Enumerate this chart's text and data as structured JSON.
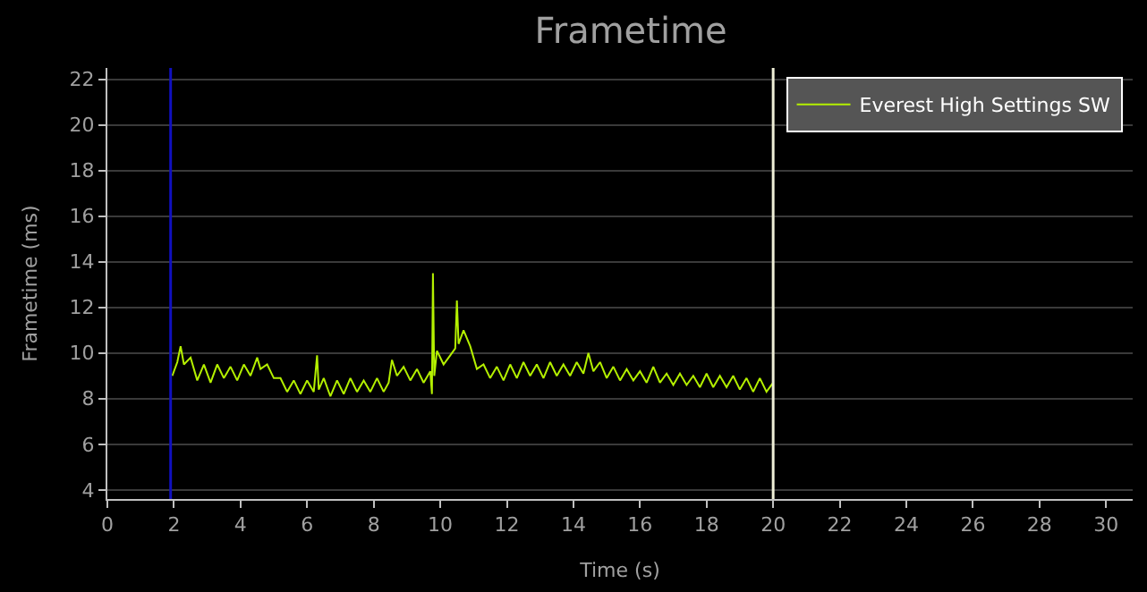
{
  "chart_data": {
    "type": "line",
    "title": "Frametime",
    "xlabel": "Time (s)",
    "ylabel": "Frametime (ms)",
    "x": [
      1.95,
      2.1,
      2.2,
      2.3,
      2.5,
      2.7,
      2.9,
      3.1,
      3.3,
      3.5,
      3.7,
      3.9,
      4.1,
      4.3,
      4.5,
      4.6,
      4.8,
      5.0,
      5.2,
      5.4,
      5.6,
      5.8,
      6.0,
      6.2,
      6.3,
      6.35,
      6.5,
      6.7,
      6.9,
      7.1,
      7.3,
      7.5,
      7.7,
      7.9,
      8.1,
      8.3,
      8.45,
      8.55,
      8.7,
      8.9,
      9.1,
      9.3,
      9.5,
      9.7,
      9.75,
      9.78,
      9.82,
      9.9,
      10.1,
      10.3,
      10.45,
      10.5,
      10.55,
      10.7,
      10.9,
      11.1,
      11.3,
      11.5,
      11.7,
      11.9,
      12.1,
      12.3,
      12.5,
      12.7,
      12.9,
      13.1,
      13.3,
      13.5,
      13.7,
      13.9,
      14.1,
      14.3,
      14.45,
      14.6,
      14.8,
      15.0,
      15.2,
      15.4,
      15.6,
      15.8,
      16.0,
      16.2,
      16.4,
      16.6,
      16.8,
      17.0,
      17.2,
      17.4,
      17.6,
      17.8,
      18.0,
      18.2,
      18.4,
      18.6,
      18.8,
      19.0,
      19.2,
      19.4,
      19.6,
      19.8,
      20.0
    ],
    "series": [
      {
        "name": "Everest High Settings SW",
        "color": "#b4f000",
        "values": [
          9.0,
          9.6,
          10.3,
          9.5,
          9.8,
          8.8,
          9.5,
          8.7,
          9.5,
          8.9,
          9.4,
          8.8,
          9.5,
          9.0,
          9.8,
          9.3,
          9.5,
          8.9,
          8.9,
          8.3,
          8.8,
          8.2,
          8.8,
          8.3,
          9.9,
          8.4,
          8.9,
          8.1,
          8.8,
          8.2,
          8.9,
          8.3,
          8.8,
          8.3,
          8.9,
          8.3,
          8.7,
          9.7,
          9.0,
          9.4,
          8.8,
          9.3,
          8.7,
          9.2,
          8.2,
          13.5,
          9.0,
          10.1,
          9.5,
          9.9,
          10.2,
          12.3,
          10.4,
          11.0,
          10.3,
          9.3,
          9.5,
          8.9,
          9.4,
          8.8,
          9.5,
          8.9,
          9.6,
          9.0,
          9.5,
          8.9,
          9.6,
          9.0,
          9.5,
          9.0,
          9.6,
          9.1,
          10.0,
          9.2,
          9.6,
          8.9,
          9.4,
          8.8,
          9.3,
          8.8,
          9.2,
          8.7,
          9.4,
          8.7,
          9.1,
          8.6,
          9.1,
          8.6,
          9.0,
          8.5,
          9.1,
          8.5,
          9.0,
          8.5,
          9.0,
          8.4,
          8.9,
          8.3,
          8.9,
          8.3,
          8.7
        ]
      }
    ],
    "xlim": [
      0,
      30.8
    ],
    "ylim": [
      3.6,
      22.5
    ],
    "xticks": [
      0,
      2,
      4,
      6,
      8,
      10,
      12,
      14,
      16,
      18,
      20,
      22,
      24,
      26,
      28,
      30
    ],
    "yticks": [
      4,
      6,
      8,
      10,
      12,
      14,
      16,
      18,
      20,
      22
    ],
    "ref_lines": [
      {
        "axis": "x",
        "value": 1.9,
        "color": "#1010c0"
      },
      {
        "axis": "x",
        "value": 20,
        "color": "#f0f0d8"
      }
    ],
    "grid": "y",
    "legend": "top right"
  }
}
